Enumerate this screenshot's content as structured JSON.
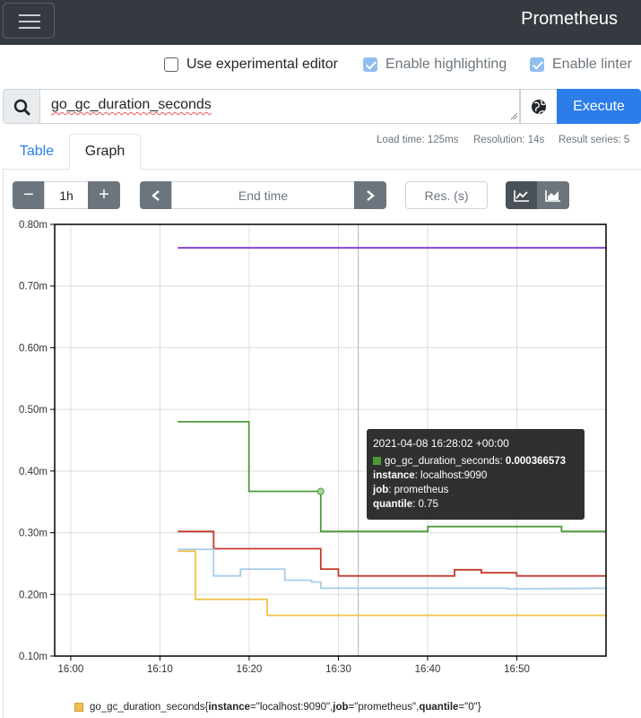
{
  "navbar": {
    "brand": "Prometheus",
    "menu_icon": "hamburger-icon"
  },
  "options": {
    "experimental_editor": {
      "label": "Use experimental editor",
      "checked": false
    },
    "highlighting": {
      "label": "Enable highlighting",
      "checked": true
    },
    "linter": {
      "label": "Enable linter",
      "checked": true
    }
  },
  "query": {
    "expression": "go_gc_duration_seconds",
    "execute_label": "Execute"
  },
  "stats": {
    "load_time": "Load time: 125ms",
    "resolution": "Resolution: 14s",
    "result_series": "Result series: 5"
  },
  "tabs": [
    {
      "label": "Table"
    },
    {
      "label": "Graph"
    }
  ],
  "controls": {
    "range": "1h",
    "minus": "−",
    "plus": "+",
    "end_time_placeholder": "End time",
    "resolution_placeholder": "Res. (s)"
  },
  "chart_data": {
    "type": "line",
    "ylim": [
      0.1,
      0.8
    ],
    "y_ticks": [
      "0.10m",
      "0.20m",
      "0.30m",
      "0.40m",
      "0.50m",
      "0.60m",
      "0.70m",
      "0.80m"
    ],
    "x_ticks": [
      "16:00",
      "16:10",
      "16:20",
      "16:30",
      "16:40",
      "16:50"
    ],
    "y_unit": "m",
    "grid": true,
    "series": [
      {
        "color": "#7b2fd8",
        "x": [
          16.2,
          17.0
        ],
        "values": [
          0.762,
          0.762
        ]
      },
      {
        "color": "#4e9a3a",
        "x": [
          16.2,
          16.333,
          16.333,
          16.467,
          16.467,
          16.667,
          16.667,
          16.733,
          16.733,
          16.917,
          16.917,
          16.933,
          16.933,
          17.0
        ],
        "values": [
          0.48,
          0.48,
          0.367,
          0.367,
          0.302,
          0.302,
          0.31,
          0.31,
          0.31,
          0.31,
          0.302,
          0.302,
          0.302,
          0.302
        ]
      },
      {
        "color": "#c43a2e",
        "x": [
          16.2,
          16.267,
          16.267,
          16.467,
          16.467,
          16.5,
          16.5,
          16.717,
          16.717,
          16.767,
          16.767,
          16.833,
          16.833,
          16.883,
          16.883,
          17.0
        ],
        "values": [
          0.302,
          0.302,
          0.274,
          0.274,
          0.241,
          0.241,
          0.23,
          0.23,
          0.24,
          0.24,
          0.235,
          0.235,
          0.23,
          0.23,
          0.23,
          0.23
        ]
      },
      {
        "color": "#a6cdea",
        "x": [
          16.2,
          16.267,
          16.267,
          16.317,
          16.317,
          16.4,
          16.4,
          16.45,
          16.45,
          16.467,
          16.467,
          16.667,
          16.667,
          16.817,
          16.817,
          17.0
        ],
        "values": [
          0.273,
          0.273,
          0.23,
          0.23,
          0.241,
          0.241,
          0.223,
          0.223,
          0.22,
          0.22,
          0.21,
          0.21,
          0.21,
          0.21,
          0.209,
          0.21
        ]
      },
      {
        "color": "#f0c24b",
        "x": [
          16.2,
          16.233,
          16.233,
          16.367,
          16.367,
          17.0
        ],
        "values": [
          0.27,
          0.27,
          0.192,
          0.192,
          0.166,
          0.166
        ]
      }
    ],
    "highlight_point": {
      "x": 16.467,
      "y": 0.367
    },
    "cursor_x": 16.537
  },
  "tooltip": {
    "time": "2021-04-08 16:28:02 +00:00",
    "metric": "go_gc_duration_seconds:",
    "value": "0.000366573",
    "label_instance_key": "instance",
    "label_instance_val": ": localhost:9090",
    "label_job_key": "job",
    "label_job_val": ": prometheus",
    "label_quantile_key": "quantile",
    "label_quantile_val": ": 0.75",
    "swatch_color": "#4e9a3a"
  },
  "legend": {
    "metric": "go_gc_duration_seconds{",
    "k1": "instance",
    "v1": "=\"localhost:9090\", ",
    "k2": "job",
    "v2": "=\"prometheus\", ",
    "k3": "quantile",
    "v3": "=\"0\"}",
    "swatch_color": "#f0c24b"
  }
}
